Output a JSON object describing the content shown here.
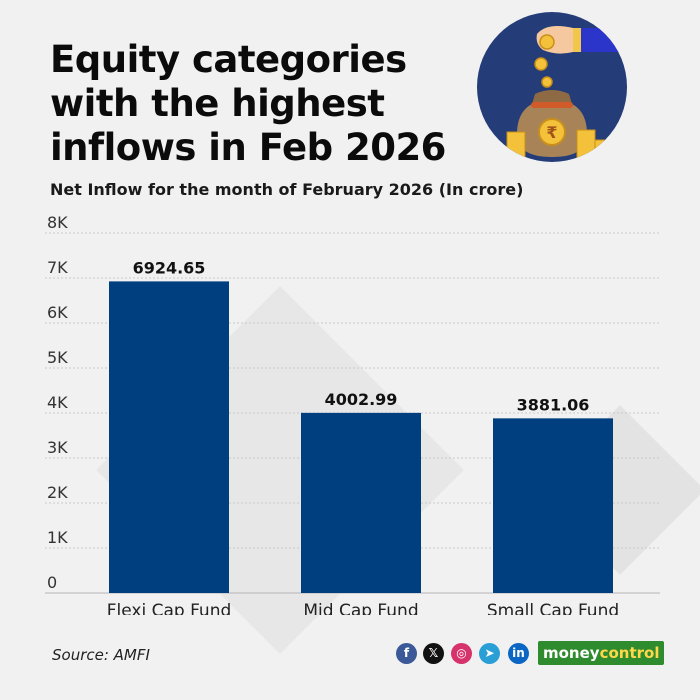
{
  "header": {
    "title_lines": [
      "Equity categories",
      "with the highest",
      "inflows in Feb 2026"
    ],
    "subtitle": "Net Inflow for the month of February 2026 (In crore)"
  },
  "chart_data": {
    "type": "bar",
    "title": "",
    "xlabel": "",
    "ylabel": "",
    "categories": [
      "Flexi Cap Fund",
      "Mid Cap Fund",
      "Small Cap Fund"
    ],
    "values": [
      6924.65,
      4002.99,
      3881.06
    ],
    "value_labels": [
      "6924.65",
      "4002.99",
      "3881.06"
    ],
    "ylim": [
      0,
      8000
    ],
    "yticks": [
      0,
      1000,
      2000,
      3000,
      4000,
      5000,
      6000,
      7000,
      8000
    ],
    "ytick_labels": [
      "0",
      "1K",
      "2K",
      "3K",
      "4K",
      "5K",
      "6K",
      "7K",
      "8K"
    ],
    "grid": true,
    "bar_color": "#003f7f"
  },
  "footer": {
    "source": "Source: AMFI",
    "social": [
      {
        "icon": "facebook-icon",
        "glyph": "f",
        "color": "#3b5998"
      },
      {
        "icon": "x-icon",
        "glyph": "𝕏",
        "color": "#111111"
      },
      {
        "icon": "instagram-icon",
        "glyph": "◎",
        "color": "#d6336c"
      },
      {
        "icon": "telegram-icon",
        "glyph": "➤",
        "color": "#2a9fd6"
      },
      {
        "icon": "linkedin-icon",
        "glyph": "in",
        "color": "#0a66c2"
      }
    ],
    "brand_part1": "money",
    "brand_part2": "control"
  },
  "colors": {
    "background": "#f1f1f1",
    "badge": "#243d78",
    "brand_green": "#2e8b2e"
  }
}
